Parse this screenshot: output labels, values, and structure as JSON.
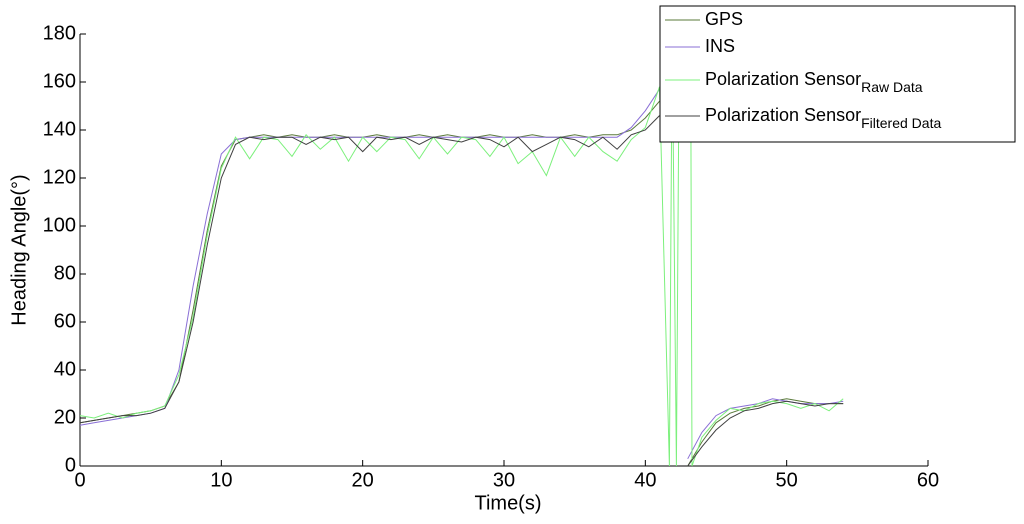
{
  "chart_data": {
    "type": "line",
    "xlabel": "Time(s)",
    "ylabel": "Heading Angle(°)",
    "xlim": [
      0,
      60
    ],
    "xticks": [
      0,
      10,
      20,
      30,
      40,
      50,
      60
    ],
    "ylim": [
      0,
      180
    ],
    "yticks": [
      0,
      20,
      40,
      60,
      80,
      100,
      120,
      140,
      160,
      180
    ],
    "legend": "upper right",
    "x": [
      0,
      1,
      2,
      3,
      4,
      5,
      6,
      7,
      8,
      9,
      10,
      11,
      12,
      13,
      14,
      15,
      16,
      17,
      18,
      19,
      20,
      21,
      22,
      23,
      24,
      25,
      26,
      27,
      28,
      29,
      30,
      31,
      32,
      33,
      34,
      35,
      36,
      37,
      38,
      39,
      40,
      41,
      42,
      43,
      44,
      45,
      46,
      47,
      48,
      49,
      50,
      51,
      52,
      53,
      54
    ],
    "series": [
      {
        "name": "GPS",
        "color": "#5a7a3a",
        "values": [
          18,
          19,
          20,
          21,
          22,
          23,
          25,
          35,
          65,
          98,
          125,
          136,
          137,
          138,
          137,
          138,
          137,
          137,
          138,
          137,
          137,
          138,
          137,
          137,
          138,
          137,
          138,
          137,
          137,
          138,
          137,
          137,
          138,
          137,
          137,
          138,
          137,
          138,
          138,
          140,
          145,
          152,
          null,
          0,
          10,
          18,
          22,
          24,
          25,
          27,
          28,
          27,
          26,
          26,
          26
        ]
      },
      {
        "name": "INS",
        "color": "#8a6fd6",
        "values": [
          17,
          18,
          19,
          20,
          21,
          22,
          24,
          40,
          75,
          105,
          130,
          136,
          137,
          137,
          137,
          137,
          137,
          137,
          137,
          137,
          137,
          137,
          137,
          137,
          137,
          137,
          137,
          137,
          137,
          137,
          137,
          137,
          137,
          137,
          137,
          137,
          137,
          137,
          137,
          141,
          148,
          157,
          null,
          3,
          14,
          21,
          24,
          25,
          26,
          28,
          27,
          26,
          26,
          26,
          27
        ]
      },
      {
        "name": "Polarization Sensor",
        "name_subscript": "Raw Data",
        "color": "#7cf07c",
        "x": [
          0,
          1,
          2,
          3,
          4,
          5,
          6,
          7,
          8,
          9,
          10,
          11,
          12,
          13,
          14,
          15,
          16,
          17,
          18,
          19,
          20,
          21,
          22,
          23,
          24,
          25,
          26,
          27,
          28,
          29,
          30,
          31,
          32,
          33,
          34,
          35,
          36,
          37,
          38,
          39,
          40,
          41,
          41.7,
          41.9,
          42.2,
          42.4,
          43.2,
          43.3,
          44,
          45,
          46,
          47,
          48,
          49,
          50,
          51,
          52,
          53,
          54
        ],
        "values": [
          21,
          20,
          22,
          20,
          22,
          23,
          25,
          38,
          62,
          96,
          124,
          137,
          128,
          137,
          136,
          129,
          138,
          132,
          137,
          127,
          137,
          131,
          137,
          136,
          128,
          137,
          130,
          137,
          136,
          129,
          137,
          126,
          131,
          121,
          137,
          129,
          137,
          131,
          127,
          136,
          141,
          158,
          0,
          180,
          0,
          180,
          180,
          0,
          12,
          19,
          24,
          23,
          26,
          27,
          26,
          24,
          26,
          23,
          28
        ]
      },
      {
        "name": "Polarization Sensor",
        "name_subscript": "Filtered Data",
        "color": "#404040",
        "values": [
          18,
          19,
          20,
          21,
          21,
          22,
          24,
          35,
          60,
          92,
          120,
          134,
          137,
          136,
          137,
          137,
          134,
          137,
          136,
          137,
          131,
          137,
          136,
          137,
          134,
          137,
          136,
          135,
          137,
          136,
          133,
          137,
          131,
          134,
          137,
          136,
          133,
          137,
          132,
          138,
          140,
          146,
          null,
          0,
          8,
          15,
          20,
          23,
          24,
          26,
          27,
          26,
          25,
          26,
          26
        ]
      }
    ]
  }
}
